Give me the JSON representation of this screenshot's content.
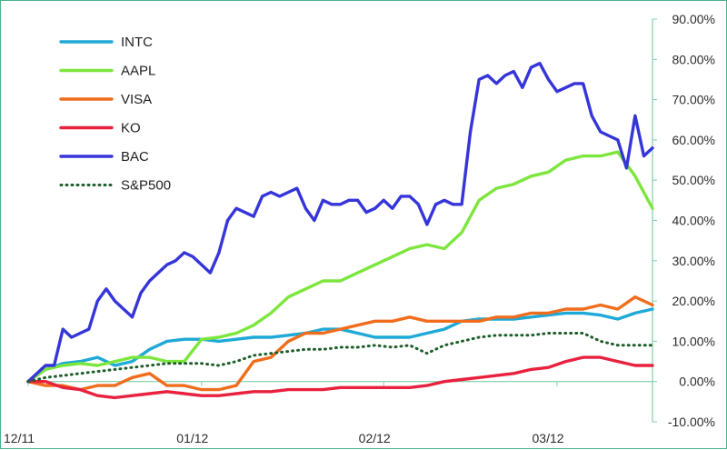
{
  "chart_data": {
    "type": "line",
    "title": "",
    "xlabel": "",
    "ylabel": "",
    "ylim": [
      -10,
      90
    ],
    "y_unit": "percent",
    "grid": false,
    "legend_position": "top-left",
    "x_ticks": [
      {
        "label": "12/11",
        "x": 0
      },
      {
        "label": "01/12",
        "x": 20
      },
      {
        "label": "02/12",
        "x": 41
      },
      {
        "label": "03/12",
        "x": 61
      }
    ],
    "y_tick_labels": [
      "-10.00%",
      "0.00%",
      "10.00%",
      "20.00%",
      "30.00%",
      "40.00%",
      "50.00%",
      "60.00%",
      "70.00%",
      "80.00%",
      "90.00%"
    ],
    "y_tick_values": [
      -10,
      0,
      10,
      20,
      30,
      40,
      50,
      60,
      70,
      80,
      90
    ],
    "xlim": [
      0,
      72
    ],
    "series": [
      {
        "name": "INTC",
        "color": "#1fa9d6",
        "dash": "solid",
        "x": [
          0,
          2,
          4,
          6,
          8,
          10,
          12,
          14,
          16,
          18,
          20,
          22,
          24,
          26,
          28,
          30,
          32,
          34,
          36,
          38,
          40,
          42,
          44,
          46,
          48,
          50,
          52,
          54,
          56,
          58,
          60,
          62,
          64,
          66,
          68,
          70,
          72
        ],
        "values": [
          0,
          3,
          4.5,
          5,
          6,
          4,
          5,
          8,
          10,
          10.5,
          10.5,
          10,
          10.5,
          11,
          11,
          11.5,
          12,
          13,
          13,
          12,
          11,
          11,
          11,
          12,
          13,
          15,
          15.5,
          15.5,
          15.5,
          16,
          16.5,
          17,
          17,
          16.5,
          15.5,
          17,
          18
        ]
      },
      {
        "name": "AAPL",
        "color": "#7de63d",
        "dash": "solid",
        "x": [
          0,
          2,
          4,
          6,
          8,
          10,
          12,
          14,
          16,
          18,
          20,
          22,
          24,
          26,
          28,
          30,
          32,
          34,
          36,
          38,
          40,
          42,
          44,
          46,
          48,
          50,
          52,
          54,
          56,
          58,
          60,
          62,
          64,
          66,
          68,
          70,
          72
        ],
        "values": [
          0,
          3,
          4,
          4.5,
          4,
          5,
          6,
          6,
          5,
          5,
          10.5,
          11,
          12,
          14,
          17,
          21,
          23,
          25,
          25,
          27,
          29,
          31,
          33,
          34,
          33,
          37,
          45,
          48,
          49,
          51,
          52,
          55,
          56,
          56,
          57,
          51,
          43
        ]
      },
      {
        "name": "VISA",
        "color": "#f06d1d",
        "dash": "solid",
        "x": [
          0,
          2,
          4,
          6,
          8,
          10,
          12,
          14,
          16,
          18,
          20,
          22,
          24,
          26,
          28,
          30,
          32,
          34,
          36,
          38,
          40,
          42,
          44,
          46,
          48,
          50,
          52,
          54,
          56,
          58,
          60,
          62,
          64,
          66,
          68,
          70,
          72
        ],
        "values": [
          0,
          -1,
          -1,
          -2,
          -1,
          -1,
          1,
          2,
          -1,
          -1,
          -2,
          -2,
          -1,
          5,
          6,
          10,
          12,
          12,
          13,
          14,
          15,
          15,
          16,
          15,
          15,
          15,
          15,
          16,
          16,
          17,
          17,
          18,
          18,
          19,
          18,
          21,
          19
        ]
      },
      {
        "name": "KO",
        "color": "#e8213e",
        "dash": "solid",
        "x": [
          0,
          2,
          4,
          6,
          8,
          10,
          12,
          14,
          16,
          18,
          20,
          22,
          24,
          26,
          28,
          30,
          32,
          34,
          36,
          38,
          40,
          42,
          44,
          46,
          48,
          50,
          52,
          54,
          56,
          58,
          60,
          62,
          64,
          66,
          68,
          70,
          72
        ],
        "values": [
          0,
          0,
          -1.5,
          -2,
          -3.5,
          -4,
          -3.5,
          -3,
          -2.5,
          -3,
          -3.5,
          -3.5,
          -3,
          -2.5,
          -2.5,
          -2,
          -2,
          -2,
          -1.5,
          -1.5,
          -1.5,
          -1.5,
          -1.5,
          -1,
          0,
          0.5,
          1,
          1.5,
          2,
          3,
          3.5,
          5,
          6,
          6,
          5,
          4,
          4
        ]
      },
      {
        "name": "BAC",
        "color": "#3535d9",
        "dash": "solid",
        "x": [
          0,
          2,
          3,
          4,
          5,
          6,
          7,
          8,
          9,
          10,
          12,
          13,
          14,
          15,
          16,
          17,
          18,
          19,
          20,
          21,
          22,
          23,
          24,
          25,
          26,
          27,
          28,
          29,
          30,
          31,
          32,
          33,
          34,
          35,
          36,
          37,
          38,
          39,
          40,
          41,
          42,
          43,
          44,
          45,
          46,
          47,
          48,
          49,
          50,
          51,
          52,
          53,
          54,
          55,
          56,
          57,
          58,
          59,
          60,
          61,
          62,
          63,
          64,
          65,
          66,
          67,
          68,
          69,
          70,
          71,
          72
        ],
        "values": [
          0,
          4,
          4,
          13,
          11,
          12,
          13,
          20,
          23,
          20,
          16,
          22,
          25,
          27,
          29,
          30,
          32,
          31,
          29,
          27,
          32,
          40,
          43,
          42,
          41,
          46,
          47,
          46,
          47,
          48,
          43,
          40,
          45,
          44,
          44,
          45,
          45,
          42,
          43,
          45,
          43,
          46,
          46,
          44,
          39,
          44,
          45,
          44,
          44,
          62,
          75,
          76,
          74,
          76,
          77,
          73,
          78,
          79,
          75,
          72,
          73,
          74,
          74,
          66,
          62,
          61,
          60,
          53,
          66,
          56,
          58
        ]
      },
      {
        "name": "S&P500",
        "color": "#1d5e2a",
        "dash": "dotted",
        "x": [
          0,
          2,
          4,
          6,
          8,
          10,
          12,
          14,
          16,
          18,
          20,
          22,
          24,
          26,
          28,
          30,
          32,
          34,
          36,
          38,
          40,
          42,
          44,
          46,
          48,
          50,
          52,
          54,
          56,
          58,
          60,
          62,
          64,
          66,
          68,
          70,
          72
        ],
        "values": [
          0,
          1,
          1.5,
          2,
          2.5,
          3,
          3.5,
          4,
          4.5,
          4.5,
          4.5,
          4,
          5,
          6.5,
          7,
          7.5,
          8,
          8,
          8.5,
          8.5,
          9,
          8.5,
          9,
          7,
          9,
          10,
          11,
          11.5,
          11.5,
          11.5,
          12,
          12,
          12,
          10,
          9,
          9,
          9
        ]
      }
    ]
  }
}
